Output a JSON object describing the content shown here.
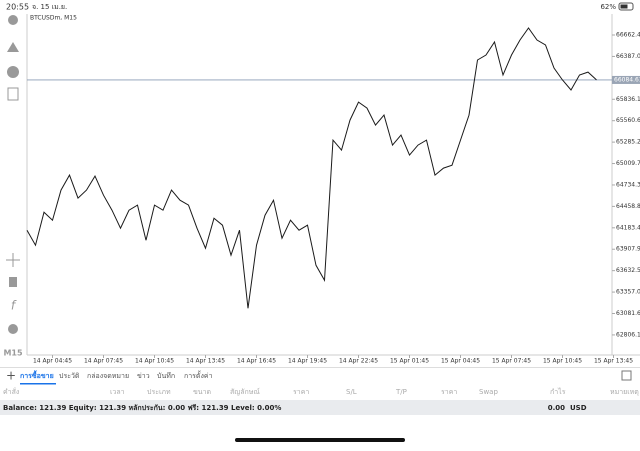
{
  "status": {
    "time": "20:55",
    "date": "จ. 15 เม.ย.",
    "battery": "62%"
  },
  "toolbar": {
    "timeframe": "M15"
  },
  "chart_data": {
    "type": "line",
    "title": "BTCUSDm, M15",
    "categories": [
      null,
      null,
      null,
      "14 Apr 04:45",
      null,
      null,
      null,
      null,
      null,
      "14 Apr 07:45",
      null,
      null,
      null,
      null,
      null,
      "14 Apr 10:45",
      null,
      null,
      null,
      null,
      null,
      "14 Apr 13:45",
      null,
      null,
      null,
      null,
      null,
      "14 Apr 16:45",
      null,
      null,
      null,
      null,
      null,
      "14 Apr 19:45",
      null,
      null,
      null,
      null,
      null,
      "14 Apr 22:45",
      null,
      null,
      null,
      null,
      null,
      "15 Apr 01:45",
      null,
      null,
      null,
      null,
      null,
      "15 Apr 04:45",
      null,
      null,
      null,
      null,
      null,
      "15 Apr 07:45",
      null,
      null,
      null,
      null,
      null,
      "15 Apr 10:45",
      null,
      null,
      null,
      null,
      null,
      "15 Apr 13:45"
    ],
    "series": [
      {
        "color": "#1a1a1a",
        "values": [
          64153,
          63960,
          64384,
          64281,
          64668,
          64861,
          64565,
          64668,
          64848,
          64603,
          64410,
          64178,
          64410,
          64475,
          64024,
          64475,
          64410,
          64668,
          64539,
          64475,
          64178,
          63921,
          64307,
          64217,
          63831,
          64153,
          63148,
          63960,
          64346,
          64539,
          64050,
          64281,
          64153,
          64217,
          63702,
          63509,
          65311,
          65182,
          65568,
          65800,
          65723,
          65504,
          65633,
          65247,
          65375,
          65118,
          65247,
          65311,
          64861,
          64951,
          64989,
          65311,
          65633,
          66341,
          66405,
          66572,
          66148,
          66405,
          66598,
          66753,
          66598,
          66534,
          66238,
          66084,
          65955,
          66148,
          66186,
          66085,
          null,
          null
        ]
      }
    ],
    "ylim": [
      62548,
      66894
    ],
    "yticks": [
      62806.16,
      {
        "value": 63081.6,
        "label": "63081.60"
      },
      63357.05,
      {
        "value": 63632.5,
        "label": "63632.50"
      },
      63907.95,
      {
        "value": 64183.4,
        "label": "64183.40"
      },
      64458.85,
      {
        "value": 64734.3,
        "label": "64734.30"
      },
      65009.75,
      {
        "value": 65285.2,
        "label": "65285.20"
      },
      65560.65,
      {
        "value": 65836.1,
        "label": "65836.10"
      },
      {
        "value": 66387,
        "label": "66387.00"
      },
      66662.45
    ],
    "current_price": 66084.61
  },
  "tabs": [
    {
      "label": "การซื้อขาย",
      "active": true
    },
    {
      "label": "ประวัติ",
      "active": false
    },
    {
      "label": "กล่องจดหมาย",
      "active": false
    },
    {
      "label": "ข่าว",
      "active": false
    },
    {
      "label": "บันทึก",
      "active": false
    },
    {
      "label": "การตั้งค่า",
      "active": false
    }
  ],
  "columns": [
    "คำสั่ง",
    "เวลา",
    "ประเภท",
    "ขนาด",
    "สัญลักษณ์",
    "ราคา",
    "S/L",
    "T/P",
    "ราคา",
    "Swap",
    "กำไร",
    "หมายเหตุ"
  ],
  "balance": {
    "text": "Balance: 121.39 Equity: 121.39 หลักประกัน: 0.00 ฟรี: 121.39 Level: 0.00%",
    "profit": "0.00",
    "currency": "USD"
  }
}
